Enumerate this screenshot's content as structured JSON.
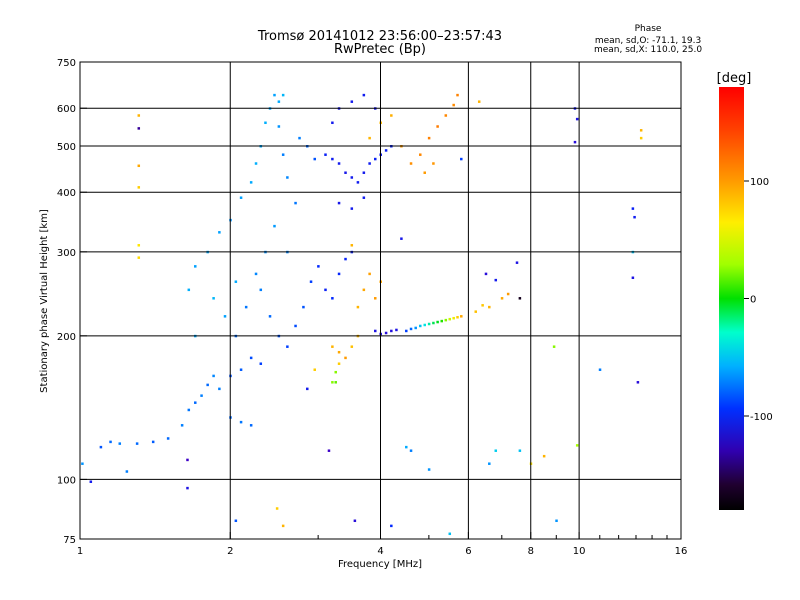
{
  "chart_data": {
    "type": "scatter",
    "title": "Tromsø 20141012 23:56:00–23:57:43",
    "subtitle": "RwPretec (Bp)",
    "xlabel": "Frequency [MHz]",
    "ylabel": "Stationary phase Virtual Height [km]",
    "x_scale": "log",
    "y_scale": "log",
    "xlim": [
      1,
      16
    ],
    "ylim": [
      75,
      750
    ],
    "x_ticks": [
      1,
      2,
      4,
      6,
      8,
      10,
      16
    ],
    "x_tick_labels": [
      "1",
      "2",
      "4",
      "6",
      "8",
      "10",
      "16"
    ],
    "y_ticks": [
      75,
      100,
      200,
      300,
      400,
      500,
      600,
      750
    ],
    "y_tick_labels": [
      "75",
      "100",
      "200",
      "300",
      "400",
      "500",
      "600",
      "750"
    ],
    "grid": true,
    "phase_info": {
      "title": "Phase",
      "o_line": "mean, sd,O: -71.1, 19.3",
      "x_line": "mean, sd,X: 110.0, 25.0"
    },
    "colorbar": {
      "label": "[deg]",
      "range": [
        -180,
        180
      ],
      "ticks": [
        100,
        0,
        -100
      ],
      "tick_labels": [
        "100",
        "0",
        "-100"
      ]
    },
    "series": [
      {
        "points": [
          [
            1.1,
            117,
            -90
          ],
          [
            1.15,
            120,
            -85
          ],
          [
            1.2,
            119,
            -80
          ],
          [
            1.3,
            119,
            -85
          ],
          [
            1.4,
            120,
            -88
          ],
          [
            1.5,
            122,
            -85
          ],
          [
            1.6,
            130,
            -80
          ],
          [
            1.65,
            140,
            -82
          ],
          [
            1.7,
            145,
            -85
          ],
          [
            1.75,
            150,
            -80
          ],
          [
            1.8,
            158,
            -85
          ],
          [
            1.85,
            165,
            -78
          ],
          [
            1.7,
            200,
            -70
          ],
          [
            1.65,
            250,
            -68
          ],
          [
            1.7,
            280,
            -72
          ],
          [
            1.8,
            300,
            -70
          ],
          [
            1.85,
            240,
            -65
          ],
          [
            1.9,
            330,
            -72
          ],
          [
            2.0,
            350,
            -75
          ],
          [
            2.0,
            165,
            -90
          ],
          [
            2.1,
            170,
            -88
          ],
          [
            2.2,
            180,
            -92
          ],
          [
            2.3,
            175,
            -95
          ],
          [
            2.0,
            135,
            -85
          ],
          [
            2.1,
            132,
            -82
          ],
          [
            2.2,
            130,
            -85
          ],
          [
            1.9,
            155,
            -80
          ],
          [
            1.95,
            220,
            -72
          ],
          [
            2.05,
            260,
            -70
          ],
          [
            2.1,
            390,
            -72
          ],
          [
            2.2,
            420,
            -70
          ],
          [
            2.25,
            460,
            -68
          ],
          [
            2.3,
            500,
            -70
          ],
          [
            2.35,
            560,
            -68
          ],
          [
            2.4,
            600,
            -70
          ],
          [
            2.45,
            640,
            -72
          ],
          [
            2.5,
            550,
            -75
          ],
          [
            2.55,
            480,
            -80
          ],
          [
            2.6,
            430,
            -78
          ],
          [
            2.7,
            380,
            -82
          ],
          [
            2.5,
            620,
            -70
          ],
          [
            2.55,
            640,
            -65
          ],
          [
            2.3,
            250,
            -80
          ],
          [
            2.4,
            220,
            -85
          ],
          [
            2.5,
            200,
            -90
          ],
          [
            2.6,
            190,
            -95
          ],
          [
            2.7,
            210,
            -92
          ],
          [
            2.8,
            230,
            -90
          ],
          [
            2.9,
            260,
            -95
          ],
          [
            3.0,
            280,
            -100
          ],
          [
            2.75,
            520,
            -80
          ],
          [
            2.85,
            500,
            -85
          ],
          [
            2.95,
            470,
            -90
          ],
          [
            2.6,
            300,
            -78
          ],
          [
            2.45,
            340,
            -74
          ],
          [
            2.35,
            300,
            -76
          ],
          [
            2.25,
            270,
            -78
          ],
          [
            2.15,
            230,
            -82
          ],
          [
            2.05,
            200,
            -84
          ],
          [
            3.1,
            480,
            -105
          ],
          [
            3.2,
            470,
            -108
          ],
          [
            3.3,
            460,
            -110
          ],
          [
            3.4,
            440,
            -112
          ],
          [
            3.5,
            430,
            -110
          ],
          [
            3.6,
            420,
            -108
          ],
          [
            3.7,
            440,
            -110
          ],
          [
            3.8,
            460,
            -108
          ],
          [
            3.9,
            470,
            -105
          ],
          [
            4.0,
            480,
            -108
          ],
          [
            4.1,
            490,
            -106
          ],
          [
            4.2,
            500,
            -104
          ],
          [
            3.3,
            380,
            -112
          ],
          [
            3.5,
            370,
            -110
          ],
          [
            3.7,
            390,
            -108
          ],
          [
            3.2,
            560,
            -110
          ],
          [
            3.3,
            600,
            -112
          ],
          [
            3.5,
            620,
            -110
          ],
          [
            3.7,
            640,
            -108
          ],
          [
            3.9,
            600,
            -112
          ],
          [
            3.1,
            250,
            -105
          ],
          [
            3.2,
            240,
            -100
          ],
          [
            3.3,
            270,
            -102
          ],
          [
            3.4,
            290,
            -104
          ],
          [
            3.5,
            300,
            -105
          ],
          [
            3.9,
            205,
            -115
          ],
          [
            4.0,
            202,
            -118
          ],
          [
            4.1,
            203,
            -120
          ],
          [
            4.2,
            205,
            -118
          ],
          [
            4.3,
            206,
            -115
          ],
          [
            4.4,
            320,
            -112
          ],
          [
            4.5,
            205,
            -95
          ],
          [
            4.6,
            207,
            -85
          ],
          [
            4.7,
            208,
            -75
          ],
          [
            4.8,
            210,
            -60
          ],
          [
            4.9,
            211,
            -45
          ],
          [
            5.0,
            212,
            -30
          ],
          [
            5.1,
            213,
            -15
          ],
          [
            5.2,
            214,
            -5
          ],
          [
            5.3,
            215,
            10
          ],
          [
            5.4,
            216,
            40
          ],
          [
            5.5,
            217,
            70
          ],
          [
            5.6,
            218,
            90
          ],
          [
            5.7,
            219,
            110
          ],
          [
            5.8,
            220,
            125
          ],
          [
            3.2,
            190,
            120
          ],
          [
            3.3,
            185,
            125
          ],
          [
            3.4,
            180,
            130
          ],
          [
            3.5,
            190,
            115
          ],
          [
            3.6,
            200,
            118
          ],
          [
            3.3,
            175,
            110
          ],
          [
            3.25,
            168,
            40
          ],
          [
            3.6,
            230,
            120
          ],
          [
            3.7,
            250,
            125
          ],
          [
            3.8,
            270,
            128
          ],
          [
            3.9,
            240,
            130
          ],
          [
            4.0,
            260,
            126
          ],
          [
            3.8,
            520,
            120
          ],
          [
            4.0,
            560,
            118
          ],
          [
            4.2,
            580,
            122
          ],
          [
            4.4,
            500,
            130
          ],
          [
            4.6,
            460,
            135
          ],
          [
            4.8,
            480,
            138
          ],
          [
            5.0,
            520,
            140
          ],
          [
            5.2,
            550,
            142
          ],
          [
            5.4,
            580,
            138
          ],
          [
            5.6,
            610,
            136
          ],
          [
            5.7,
            640,
            140
          ],
          [
            4.9,
            440,
            130
          ],
          [
            5.1,
            460,
            132
          ],
          [
            6.2,
            225,
            115
          ],
          [
            6.4,
            232,
            112
          ],
          [
            6.6,
            230,
            120
          ],
          [
            7.0,
            240,
            125
          ],
          [
            7.2,
            245,
            130
          ],
          [
            7.6,
            240,
            -170
          ],
          [
            6.5,
            270,
            -120
          ],
          [
            6.8,
            262,
            -110
          ],
          [
            7.5,
            285,
            -115
          ],
          [
            9.8,
            600,
            -110
          ],
          [
            9.9,
            570,
            -115
          ],
          [
            9.8,
            510,
            -120
          ],
          [
            12.8,
            370,
            -105
          ],
          [
            12.9,
            355,
            -108
          ],
          [
            12.8,
            265,
            -115
          ],
          [
            13.1,
            160,
            -120
          ],
          [
            1.31,
            580,
            120
          ],
          [
            1.31,
            545,
            -140
          ],
          [
            1.31,
            455,
            125
          ],
          [
            1.31,
            410,
            110
          ],
          [
            1.31,
            310,
            100
          ],
          [
            1.31,
            292,
            105
          ],
          [
            1.01,
            108,
            -75
          ],
          [
            1.05,
            99,
            -110
          ],
          [
            1.24,
            104,
            -80
          ],
          [
            1.64,
            110,
            -130
          ],
          [
            1.64,
            96,
            -115
          ],
          [
            2.05,
            82,
            -90
          ],
          [
            2.48,
            87,
            110
          ],
          [
            2.55,
            80,
            120
          ],
          [
            3.15,
            115,
            -130
          ],
          [
            3.55,
            82,
            -120
          ],
          [
            4.2,
            80,
            -100
          ],
          [
            4.5,
            117,
            -70
          ],
          [
            4.6,
            115,
            -80
          ],
          [
            5.0,
            105,
            -75
          ],
          [
            5.5,
            77,
            -60
          ],
          [
            6.6,
            108,
            -75
          ],
          [
            6.8,
            115,
            -55
          ],
          [
            7.6,
            115,
            -60
          ],
          [
            8.0,
            108,
            100
          ],
          [
            8.5,
            112,
            120
          ],
          [
            8.9,
            190,
            40
          ],
          [
            9.0,
            82,
            -75
          ],
          [
            9.9,
            118,
            50
          ],
          [
            11.0,
            170,
            -80
          ],
          [
            13.3,
            540,
            120
          ],
          [
            13.3,
            520,
            110
          ],
          [
            12.8,
            300,
            -60
          ],
          [
            3.2,
            160,
            40
          ],
          [
            3.25,
            160,
            30
          ],
          [
            2.95,
            170,
            110
          ],
          [
            2.85,
            155,
            -110
          ],
          [
            3.5,
            310,
            120
          ],
          [
            5.8,
            470,
            -95
          ],
          [
            6.3,
            620,
            120
          ]
        ]
      }
    ]
  }
}
